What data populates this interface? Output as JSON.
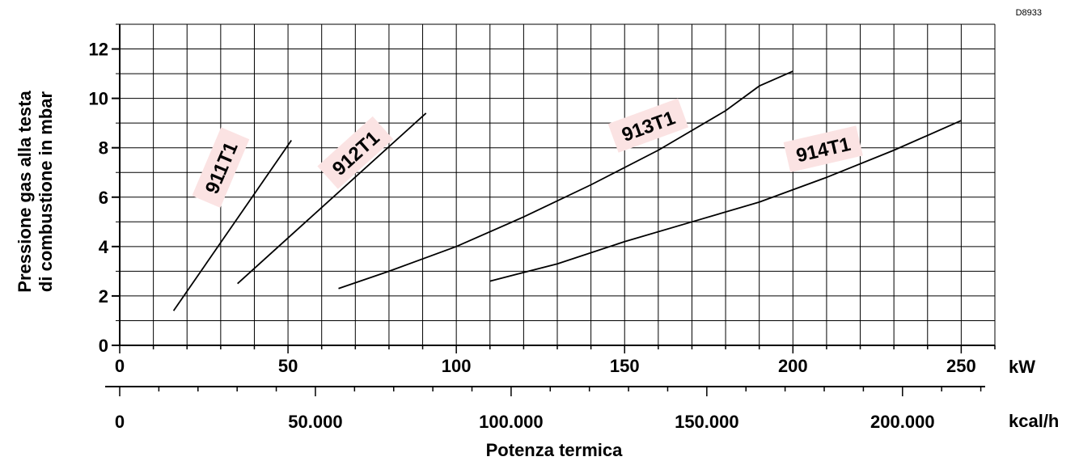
{
  "drawing_code": "D8933",
  "chart_data": {
    "type": "line",
    "title": "",
    "xlabel": "Potenza termica",
    "ylabel_line1": "Pressione gas alla testa",
    "ylabel_line2": "di combustione in  mbar",
    "x_unit": "kW",
    "x2_unit": "kcal/h",
    "xlim": [
      0,
      260
    ],
    "ylim": [
      0,
      13
    ],
    "x_ticks": [
      "0",
      "50",
      "100",
      "150",
      "200",
      "250"
    ],
    "x2_ticks": [
      "0",
      "50.000",
      "100.000",
      "150.000",
      "200.000"
    ],
    "y_ticks": [
      "0",
      "2",
      "4",
      "6",
      "8",
      "10",
      "12"
    ],
    "grid": true,
    "series": [
      {
        "name": "911T1",
        "x": [
          16,
          51
        ],
        "y": [
          1.4,
          8.3
        ]
      },
      {
        "name": "912T1",
        "x": [
          35,
          91
        ],
        "y": [
          2.5,
          9.4
        ]
      },
      {
        "name": "913T1",
        "x": [
          65,
          80,
          100,
          120,
          140,
          160,
          180,
          190,
          200
        ],
        "y": [
          2.3,
          3.0,
          4.0,
          5.2,
          6.5,
          7.9,
          9.5,
          10.5,
          11.1
        ]
      },
      {
        "name": "914T1",
        "x": [
          110,
          130,
          150,
          170,
          190,
          210,
          230,
          250
        ],
        "y": [
          2.6,
          3.3,
          4.2,
          5.0,
          5.8,
          6.8,
          7.9,
          9.1
        ]
      }
    ],
    "label_color": "#fbe3e3"
  }
}
